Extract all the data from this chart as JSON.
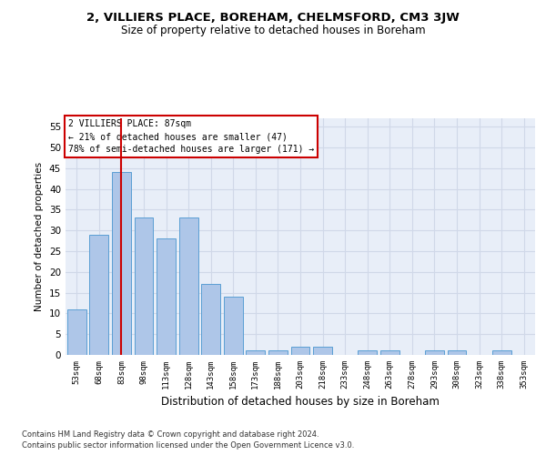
{
  "title1": "2, VILLIERS PLACE, BOREHAM, CHELMSFORD, CM3 3JW",
  "title2": "Size of property relative to detached houses in Boreham",
  "xlabel": "Distribution of detached houses by size in Boreham",
  "ylabel": "Number of detached properties",
  "categories": [
    "53sqm",
    "68sqm",
    "83sqm",
    "98sqm",
    "113sqm",
    "128sqm",
    "143sqm",
    "158sqm",
    "173sqm",
    "188sqm",
    "203sqm",
    "218sqm",
    "233sqm",
    "248sqm",
    "263sqm",
    "278sqm",
    "293sqm",
    "308sqm",
    "323sqm",
    "338sqm",
    "353sqm"
  ],
  "values": [
    11,
    29,
    44,
    33,
    28,
    33,
    17,
    14,
    1,
    1,
    2,
    2,
    0,
    1,
    1,
    0,
    1,
    1,
    0,
    1,
    0
  ],
  "bar_color": "#aec6e8",
  "bar_edge_color": "#5a9fd4",
  "vline_x": 2,
  "vline_color": "#cc0000",
  "annotation_text": "2 VILLIERS PLACE: 87sqm\n← 21% of detached houses are smaller (47)\n78% of semi-detached houses are larger (171) →",
  "annotation_box_color": "#ffffff",
  "annotation_box_edge": "#cc0000",
  "ylim": [
    0,
    57
  ],
  "yticks": [
    0,
    5,
    10,
    15,
    20,
    25,
    30,
    35,
    40,
    45,
    50,
    55
  ],
  "grid_color": "#d0d8e8",
  "bg_color": "#e8eef8",
  "footer1": "Contains HM Land Registry data © Crown copyright and database right 2024.",
  "footer2": "Contains public sector information licensed under the Open Government Licence v3.0."
}
